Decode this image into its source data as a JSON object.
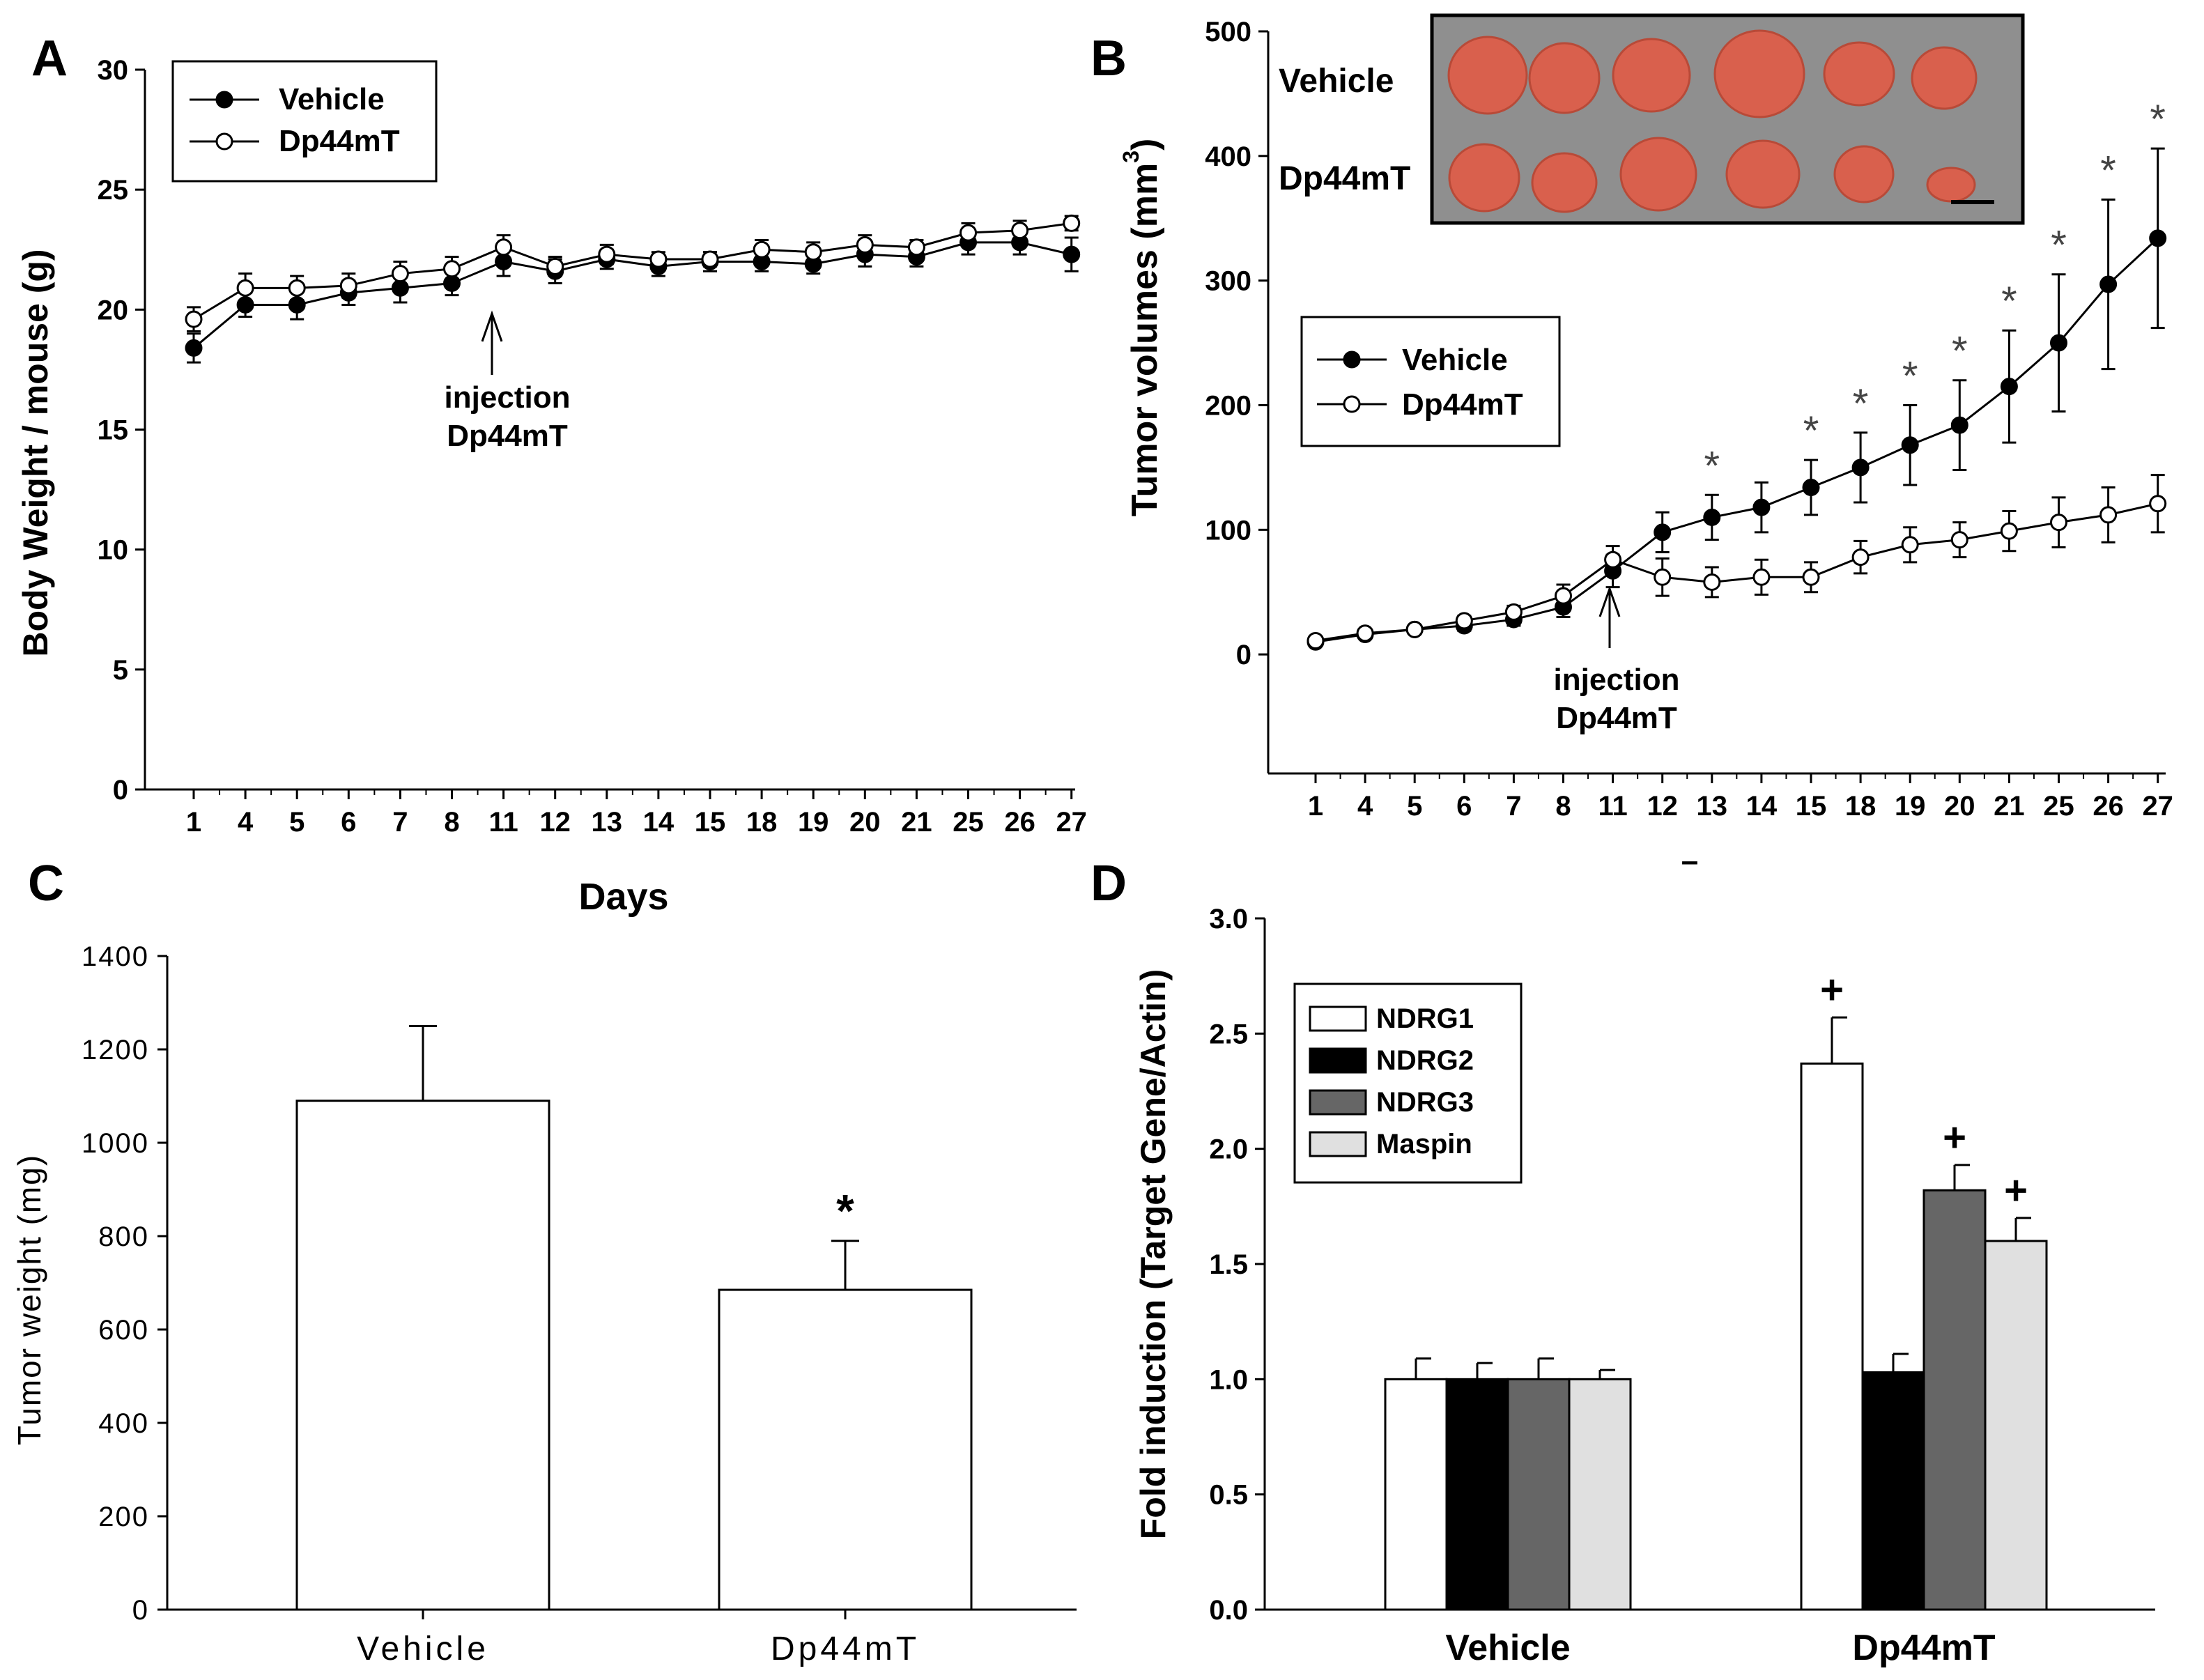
{
  "chart_data": [
    {
      "panel": "A",
      "type": "line",
      "ylabel": "Body Weight / mouse (g)",
      "xlabel": "Days",
      "ylim": [
        0,
        30
      ],
      "yticks": [
        0,
        5,
        10,
        15,
        20,
        25,
        30
      ],
      "categories": [
        "1",
        "4",
        "5",
        "6",
        "7",
        "8",
        "11",
        "12",
        "13",
        "14",
        "15",
        "18",
        "19",
        "20",
        "21",
        "25",
        "26",
        "27"
      ],
      "series": [
        {
          "name": "Vehicle",
          "marker": "filled",
          "values": [
            18.4,
            20.2,
            20.2,
            20.7,
            20.9,
            21.1,
            22.0,
            21.6,
            22.1,
            21.8,
            22.0,
            22.0,
            21.9,
            22.3,
            22.2,
            22.8,
            22.8,
            22.3
          ],
          "errors": [
            0.6,
            0.5,
            0.6,
            0.5,
            0.6,
            0.5,
            0.6,
            0.5,
            0.4,
            0.4,
            0.4,
            0.4,
            0.4,
            0.5,
            0.4,
            0.5,
            0.5,
            0.7
          ]
        },
        {
          "name": "Dp44mT",
          "marker": "open",
          "values": [
            19.6,
            20.9,
            20.9,
            21.0,
            21.5,
            21.7,
            22.6,
            21.8,
            22.3,
            22.1,
            22.1,
            22.5,
            22.4,
            22.7,
            22.6,
            23.2,
            23.3,
            23.6
          ],
          "errors": [
            0.5,
            0.6,
            0.5,
            0.5,
            0.5,
            0.5,
            0.5,
            0.4,
            0.4,
            0.3,
            0.3,
            0.4,
            0.4,
            0.4,
            0.3,
            0.4,
            0.4,
            0.3
          ]
        }
      ],
      "annotation": {
        "line1": "injection",
        "line2": "Dp44mT",
        "at": "11"
      },
      "legend": "top-left"
    },
    {
      "panel": "B",
      "type": "line",
      "ylabel_main": "Tumor volumes (mm",
      "ylabel_sup": "3",
      "ylabel_close": ")",
      "ylim": [
        -100,
        500
      ],
      "yticks": [
        0,
        100,
        200,
        300,
        400,
        500
      ],
      "categories": [
        "1",
        "4",
        "5",
        "6",
        "7",
        "8",
        "11",
        "12",
        "13",
        "14",
        "15",
        "18",
        "19",
        "20",
        "21",
        "25",
        "26",
        "27"
      ],
      "series": [
        {
          "name": "Vehicle",
          "marker": "filled",
          "values": [
            10,
            16,
            20,
            23,
            28,
            38,
            67,
            98,
            110,
            118,
            134,
            150,
            168,
            184,
            215,
            250,
            297,
            334
          ],
          "errors": [
            3,
            3,
            3,
            4,
            5,
            8,
            13,
            16,
            18,
            20,
            22,
            28,
            32,
            36,
            45,
            55,
            68,
            72
          ]
        },
        {
          "name": "Dp44mT",
          "marker": "open",
          "values": [
            11,
            17,
            20,
            27,
            34,
            47,
            76,
            62,
            58,
            62,
            62,
            78,
            88,
            92,
            99,
            106,
            112,
            121
          ],
          "errors": [
            3,
            3,
            3,
            4,
            5,
            9,
            11,
            15,
            12,
            14,
            12,
            13,
            14,
            14,
            16,
            20,
            22,
            23
          ]
        }
      ],
      "significance": "*",
      "significant_categories": [
        "13",
        "15",
        "18",
        "19",
        "20",
        "21",
        "25",
        "26",
        "27"
      ],
      "annotation": {
        "line1": "injection",
        "line2": "Dp44mT",
        "at": "11"
      },
      "inset_labels": [
        "Vehicle",
        "Dp44mT"
      ],
      "stray_mark": "–",
      "legend": "center-left"
    },
    {
      "panel": "C",
      "type": "bar",
      "title": "Days",
      "ylabel": "Tumor weight (mg)",
      "ylim": [
        0,
        1400
      ],
      "yticks": [
        0,
        200,
        400,
        600,
        800,
        1000,
        1200,
        1400
      ],
      "categories": [
        "Vehicle",
        "Dp44mT"
      ],
      "values": [
        1090,
        685
      ],
      "errors": [
        160,
        105
      ],
      "significance": [
        "",
        "*"
      ]
    },
    {
      "panel": "D",
      "type": "bar",
      "ylabel": "Fold induction (Target Gene/Actin)",
      "ylim": [
        0,
        3
      ],
      "yticks": [
        "0.0",
        "0.5",
        "1.0",
        "1.5",
        "2.0",
        "2.5",
        "3.0"
      ],
      "categories": [
        "Vehicle",
        "Dp44mT"
      ],
      "series": [
        {
          "name": "NDRG1",
          "color": "#ffffff",
          "values": [
            1.0,
            2.37
          ],
          "errors": [
            0.09,
            0.2
          ]
        },
        {
          "name": "NDRG2",
          "color": "#000000",
          "values": [
            1.0,
            1.03
          ],
          "errors": [
            0.07,
            0.08
          ]
        },
        {
          "name": "NDRG3",
          "color": "#666666",
          "values": [
            1.0,
            1.82
          ],
          "errors": [
            0.09,
            0.11
          ]
        },
        {
          "name": "Maspin",
          "color": "#e0e0e0",
          "values": [
            1.0,
            1.6
          ],
          "errors": [
            0.04,
            0.1
          ]
        }
      ],
      "significance_mark": "+",
      "significant_series_at_dp44mt": [
        "NDRG1",
        "NDRG3",
        "Maspin"
      ],
      "legend": "top-left"
    }
  ]
}
